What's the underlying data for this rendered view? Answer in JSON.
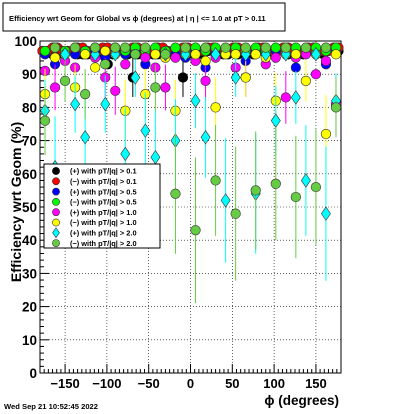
{
  "chart_data": {
    "type": "scatter",
    "title": "Efficiency wrt Geom for Global vs ϕ (degrees) at |  η | <= 1.0 at pT > 0.11",
    "xlabel": "ϕ (degrees)",
    "ylabel": "Efficiency wrt Geom (%)",
    "xlim": [
      -180,
      180
    ],
    "ylim": [
      0,
      100
    ],
    "x_ticks": [
      -150,
      -100,
      -50,
      0,
      50,
      100,
      150
    ],
    "x_tick_labels": [
      "−150",
      "−100",
      "−50",
      "0",
      "50",
      "100",
      "150"
    ],
    "y_ticks": [
      0,
      10,
      20,
      30,
      40,
      50,
      60,
      70,
      80,
      90,
      100
    ],
    "y_tick_labels": [
      "0",
      "10",
      "20",
      "30",
      "40",
      "50",
      "60",
      "70",
      "80",
      "90",
      "100"
    ],
    "grid": true,
    "legend_position": "left-middle",
    "series": [
      {
        "name": "(+) with pT/|q| > 0.1",
        "color": "#000000",
        "marker": "circle",
        "x": [
          -177,
          -171,
          -165,
          -159,
          -153,
          -147,
          -141,
          -135,
          -129,
          -123,
          -117,
          -111,
          -105,
          -99,
          -93,
          -87,
          -81,
          -75,
          -69,
          -63,
          -57,
          -51,
          -45,
          -39,
          -33,
          -27,
          -21,
          -15,
          -9,
          -3,
          3,
          9,
          15,
          21,
          27,
          33,
          39,
          45,
          51,
          57,
          63,
          69,
          75,
          81,
          87,
          93,
          99,
          105,
          111,
          117,
          123,
          129,
          135,
          141,
          147,
          153,
          159,
          165,
          171,
          177
        ],
        "y": [
          97,
          97,
          96,
          96,
          97,
          97,
          97,
          96,
          96,
          96,
          97,
          97,
          96,
          93,
          96,
          97,
          97,
          96,
          89,
          96,
          97,
          97,
          96,
          96,
          97,
          96,
          97,
          96,
          89,
          96,
          97,
          96,
          96,
          97,
          97,
          97,
          96,
          96,
          97,
          96,
          97,
          97,
          96,
          97,
          97,
          97,
          96,
          97,
          97,
          96,
          97,
          97,
          96,
          97,
          97,
          97,
          96,
          97,
          97,
          97
        ]
      },
      {
        "name": "(−) with pT/|q| > 0.1",
        "color": "#ff0000",
        "marker": "circle",
        "x": [
          -177,
          -171,
          -165,
          -159,
          -153,
          -147,
          -141,
          -135,
          -129,
          -123,
          -117,
          -111,
          -105,
          -99,
          -93,
          -87,
          -81,
          -75,
          -69,
          -63,
          -57,
          -51,
          -45,
          -39,
          -33,
          -27,
          -21,
          -15,
          -9,
          -3,
          3,
          9,
          15,
          21,
          27,
          33,
          39,
          45,
          51,
          57,
          63,
          69,
          75,
          81,
          87,
          93,
          99,
          105,
          111,
          117,
          123,
          129,
          135,
          141,
          147,
          153,
          159,
          165,
          171,
          177
        ],
        "y": [
          97,
          97,
          98,
          98,
          97,
          97,
          97,
          98,
          98,
          97,
          97,
          97,
          98,
          98,
          97,
          97,
          97,
          97,
          98,
          98,
          97,
          97,
          97,
          98,
          98,
          97,
          97,
          97,
          98,
          98,
          97,
          97,
          97,
          98,
          98,
          97,
          97,
          97,
          98,
          98,
          97,
          97,
          97,
          98,
          98,
          97,
          97,
          97,
          98,
          98,
          97,
          97,
          97,
          98,
          98,
          97,
          97,
          97,
          98,
          98
        ]
      },
      {
        "name": "(+) with pT/|q| > 0.5",
        "color": "#0000ff",
        "marker": "circle",
        "x": [
          -174,
          -162,
          -150,
          -138,
          -126,
          -114,
          -102,
          -90,
          -78,
          -66,
          -54,
          -42,
          -30,
          -18,
          -6,
          6,
          18,
          30,
          42,
          54,
          66,
          78,
          90,
          102,
          114,
          126,
          138,
          150,
          162,
          174
        ],
        "y": [
          96,
          93,
          97,
          96,
          97,
          97,
          95,
          97,
          96,
          97,
          93,
          96,
          97,
          96,
          95,
          97,
          92,
          96,
          97,
          96,
          94,
          97,
          96,
          97,
          96,
          92,
          97,
          96,
          93,
          97
        ]
      },
      {
        "name": "(−) with pT/|q| > 0.5",
        "color": "#00ff00",
        "marker": "circle",
        "x": [
          -174,
          -162,
          -150,
          -138,
          -126,
          -114,
          -102,
          -90,
          -78,
          -66,
          -54,
          -42,
          -30,
          -18,
          -6,
          6,
          18,
          30,
          42,
          54,
          66,
          78,
          90,
          102,
          114,
          126,
          138,
          150,
          162,
          174
        ],
        "y": [
          97,
          98,
          97,
          98,
          97,
          98,
          97,
          98,
          97,
          98,
          97,
          98,
          97,
          98,
          97,
          98,
          97,
          98,
          97,
          98,
          97,
          98,
          97,
          98,
          97,
          98,
          97,
          98,
          97,
          98
        ]
      },
      {
        "name": "(+) with pT/|q| > 1.0",
        "color": "#ff00ff",
        "marker": "circle",
        "x": [
          -174,
          -162,
          -150,
          -138,
          -126,
          -114,
          -102,
          -90,
          -78,
          -66,
          -54,
          -42,
          -30,
          -18,
          -6,
          6,
          18,
          30,
          42,
          54,
          66,
          78,
          90,
          102,
          114,
          126,
          138,
          150,
          162,
          174
        ],
        "y": [
          91,
          86,
          94,
          92,
          96,
          95,
          89,
          85,
          93,
          96,
          95,
          92,
          86,
          95,
          96,
          94,
          88,
          95,
          96,
          92,
          89,
          96,
          93,
          95,
          83,
          95,
          96,
          90,
          94,
          81
        ]
      },
      {
        "name": "(−) with pT/|q| > 1.0",
        "color": "#ffff00",
        "marker": "circle",
        "x": [
          -174,
          -162,
          -150,
          -138,
          -126,
          -114,
          -102,
          -90,
          -78,
          -66,
          -54,
          -42,
          -30,
          -18,
          -6,
          6,
          18,
          30,
          42,
          54,
          66,
          78,
          90,
          102,
          114,
          126,
          138,
          150,
          162,
          174
        ],
        "y": [
          84,
          95,
          96,
          86,
          96,
          92,
          97,
          96,
          79,
          96,
          84,
          96,
          95,
          79,
          96,
          96,
          94,
          80,
          96,
          96,
          89,
          96,
          95,
          82,
          96,
          96,
          88,
          96,
          72,
          96
        ]
      },
      {
        "name": "(+) with pT/|q| > 2.0",
        "color": "#00ffff",
        "marker": "diamond",
        "x": [
          -174,
          -162,
          -150,
          -138,
          -126,
          -114,
          -102,
          -90,
          -78,
          -66,
          -54,
          -42,
          -30,
          -18,
          -6,
          6,
          18,
          30,
          42,
          54,
          66,
          78,
          90,
          102,
          114,
          126,
          138,
          150,
          162,
          174
        ],
        "y": [
          79,
          62,
          96,
          81,
          71,
          96,
          81,
          96,
          66,
          89,
          73,
          65,
          96,
          70,
          96,
          82,
          71,
          96,
          52,
          89,
          96,
          54,
          96,
          76,
          96,
          83,
          58,
          96,
          48,
          82
        ]
      },
      {
        "name": "(−) with pT/|q| > 2.0",
        "color": "#66cc44",
        "marker": "circle",
        "x": [
          -174,
          -162,
          -150,
          -138,
          -126,
          -114,
          -102,
          -90,
          -78,
          -66,
          -54,
          -42,
          -30,
          -18,
          -6,
          6,
          18,
          30,
          42,
          54,
          66,
          78,
          90,
          102,
          114,
          126,
          138,
          150,
          162,
          174
        ],
        "y": [
          76,
          98,
          88,
          98,
          84,
          98,
          93,
          98,
          98,
          96,
          98,
          86,
          96,
          54,
          98,
          43,
          98,
          58,
          98,
          48,
          98,
          55,
          98,
          57,
          98,
          53,
          98,
          56,
          98,
          80
        ]
      }
    ]
  },
  "timestamp": "Wed Sep 21 10:52:45 2022"
}
